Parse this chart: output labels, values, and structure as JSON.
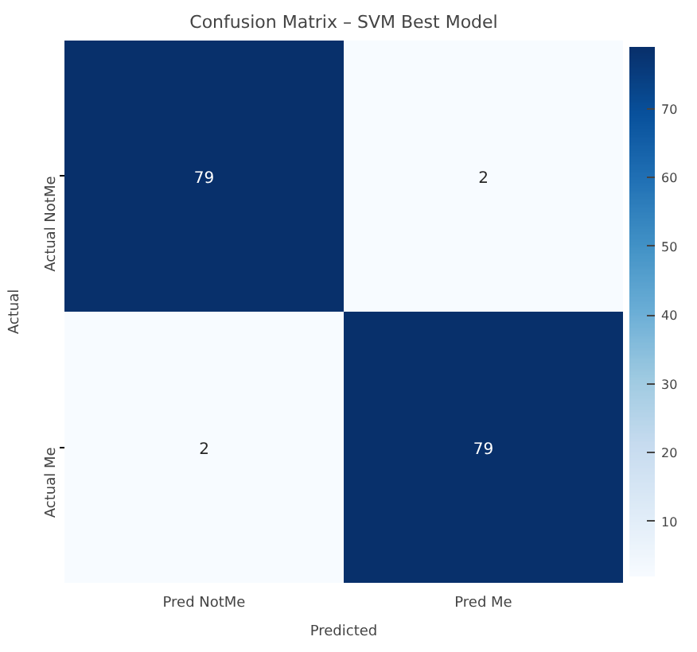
{
  "chart_data": {
    "type": "heatmap",
    "title": "Confusion Matrix – SVM Best Model",
    "xlabel": "Predicted",
    "ylabel": "Actual",
    "categories": [
      "Pred NotMe",
      "Pred Me"
    ],
    "y_categories": [
      "Actual NotMe",
      "Actual Me"
    ],
    "cells": [
      [
        79,
        2
      ],
      [
        2,
        79
      ]
    ],
    "clim": [
      2,
      79
    ],
    "cticks": [
      10,
      20,
      30,
      40,
      50,
      60,
      70
    ],
    "data_labels": true
  }
}
